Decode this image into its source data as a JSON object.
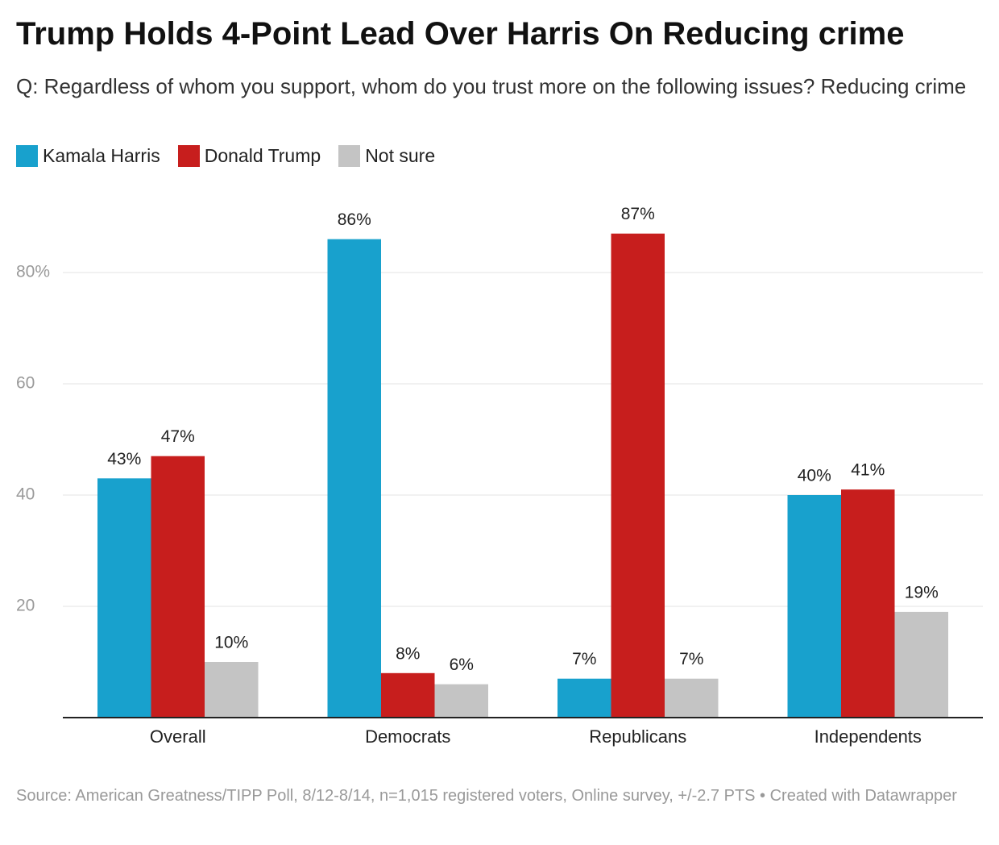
{
  "chart_data": {
    "type": "bar",
    "title": "Trump Holds 4-Point Lead Over Harris On Reducing crime",
    "subtitle": "Q: Regardless of whom you support, whom do you trust more on the following issues? Reducing crime",
    "source": "Source: American Greatness/TIPP Poll, 8/12-8/14, n=1,015 registered voters, Online survey, +/-2.7 PTS • Created with Datawrapper",
    "categories": [
      "Overall",
      "Democrats",
      "Republicans",
      "Independents"
    ],
    "series": [
      {
        "name": "Kamala Harris",
        "color": "#18a1cd",
        "values": [
          43,
          86,
          7,
          40
        ],
        "value_labels": [
          "43%",
          "86%",
          "7%",
          "40%"
        ]
      },
      {
        "name": "Donald Trump",
        "color": "#c71e1d",
        "values": [
          47,
          8,
          87,
          41
        ],
        "value_labels": [
          "47%",
          "8%",
          "87%",
          "41%"
        ]
      },
      {
        "name": "Not sure",
        "color": "#c4c4c4",
        "values": [
          10,
          6,
          7,
          19
        ],
        "value_labels": [
          "10%",
          "6%",
          "7%",
          "19%"
        ]
      }
    ],
    "ylim": [
      0,
      90
    ],
    "yticks": [
      20,
      40,
      60,
      {
        "value": 80,
        "label": "80%"
      }
    ],
    "grid": true
  }
}
